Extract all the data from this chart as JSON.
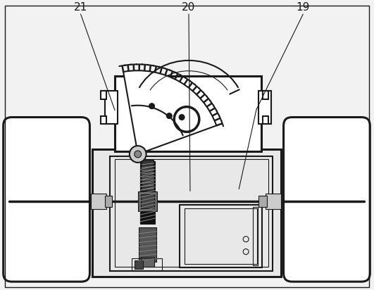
{
  "background_color": "#f2f2f2",
  "line_color": "#1a1a1a",
  "lw_main": 1.5,
  "lw_thin": 0.8,
  "lw_thick": 2.2,
  "fig_width": 5.31,
  "fig_height": 4.12,
  "dpi": 100
}
